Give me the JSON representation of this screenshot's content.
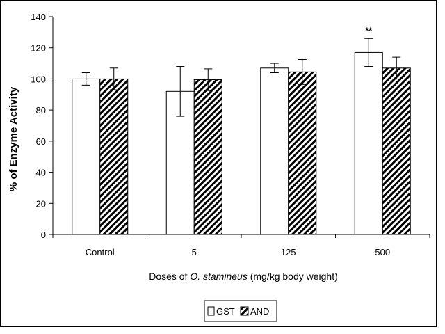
{
  "chart_data": {
    "type": "bar",
    "categories": [
      "Control",
      "5",
      "125",
      "500"
    ],
    "series": [
      {
        "name": "GST",
        "values": [
          100,
          92,
          107,
          117
        ],
        "errors": [
          4,
          16,
          3,
          9
        ],
        "fill": "white"
      },
      {
        "name": "AND",
        "values": [
          100,
          99.5,
          104.5,
          107
        ],
        "errors": [
          7,
          7,
          8,
          7
        ],
        "fill": "diagonal-hatch"
      }
    ],
    "annotations": [
      {
        "category": "500",
        "series": "GST",
        "text": "**"
      }
    ],
    "title": "",
    "ylabel": "% of Enzyme Activity",
    "xlabel": {
      "prefix": "Doses of ",
      "italic": "O. stamineus",
      "suffix": " (mg/kg body weight)"
    },
    "ylim": [
      0,
      140
    ],
    "yticks": [
      "0",
      "20",
      "40",
      "60",
      "80",
      "100",
      "120",
      "140"
    ],
    "grid": false,
    "legend_position": "bottom-center",
    "colors": {
      "axis": "#000000",
      "bar_fill": "#ffffff",
      "hatch": "#000000"
    }
  }
}
